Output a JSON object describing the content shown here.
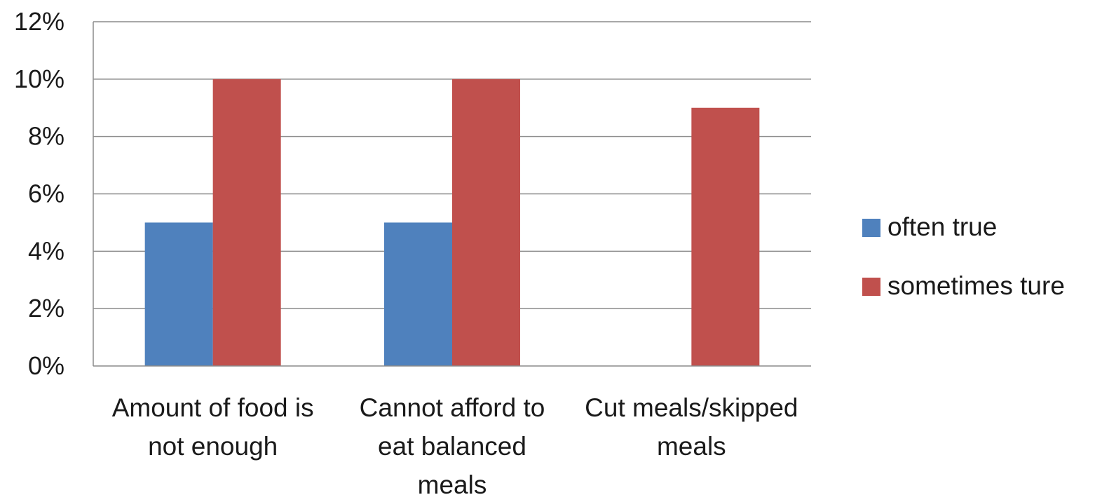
{
  "chart_data": {
    "type": "bar",
    "categories": [
      [
        "Amount of food is",
        "not enough"
      ],
      [
        "Cannot afford to",
        "eat balanced",
        "meals"
      ],
      [
        "Cut meals/skipped",
        "meals"
      ]
    ],
    "series": [
      {
        "name": "often true",
        "values": [
          5,
          5,
          0
        ],
        "color": "#4f81bd"
      },
      {
        "name": "sometimes ture",
        "values": [
          10,
          10,
          9
        ],
        "color": "#c0504d"
      }
    ],
    "yticks": [
      "0%",
      "2%",
      "4%",
      "6%",
      "8%",
      "10%",
      "12%"
    ],
    "ylim": [
      0,
      12
    ],
    "grid": true,
    "legend_position": "right"
  }
}
